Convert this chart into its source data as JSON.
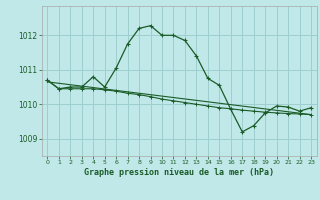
{
  "title": "Graphe pression niveau de la mer (hPa)",
  "background_color": "#c0e8e8",
  "grid_color": "#9ecece",
  "line_color": "#1a5c28",
  "xlim": [
    -0.5,
    23.5
  ],
  "ylim": [
    1008.5,
    1012.85
  ],
  "yticks": [
    1009,
    1010,
    1011,
    1012
  ],
  "xticks": [
    0,
    1,
    2,
    3,
    4,
    5,
    6,
    7,
    8,
    9,
    10,
    11,
    12,
    13,
    14,
    15,
    16,
    17,
    18,
    19,
    20,
    21,
    22,
    23
  ],
  "series1_x": [
    0,
    1,
    2,
    3,
    4,
    5,
    6,
    7,
    8,
    9,
    10,
    11,
    12,
    13,
    14,
    15,
    16,
    17,
    18,
    19,
    20,
    21,
    22,
    23
  ],
  "series1_y": [
    1010.7,
    1010.45,
    1010.5,
    1010.5,
    1010.8,
    1010.5,
    1011.05,
    1011.75,
    1012.2,
    1012.28,
    1012.0,
    1012.0,
    1011.85,
    1011.4,
    1010.75,
    1010.55,
    1009.85,
    1009.2,
    1009.38,
    1009.75,
    1009.95,
    1009.92,
    1009.8,
    1009.9
  ],
  "series2_x": [
    0,
    1,
    2,
    3,
    4,
    5,
    6,
    7,
    8,
    9,
    10,
    11,
    12,
    13,
    14,
    15,
    16,
    17,
    18,
    19,
    20,
    21,
    22,
    23
  ],
  "series2_y": [
    1010.7,
    1010.45,
    1010.45,
    1010.45,
    1010.45,
    1010.42,
    1010.38,
    1010.32,
    1010.28,
    1010.22,
    1010.15,
    1010.1,
    1010.05,
    1010.0,
    1009.95,
    1009.9,
    1009.87,
    1009.83,
    1009.8,
    1009.77,
    1009.75,
    1009.73,
    1009.72,
    1009.7
  ],
  "series3_x": [
    0,
    23
  ],
  "series3_y": [
    1010.65,
    1009.7
  ]
}
